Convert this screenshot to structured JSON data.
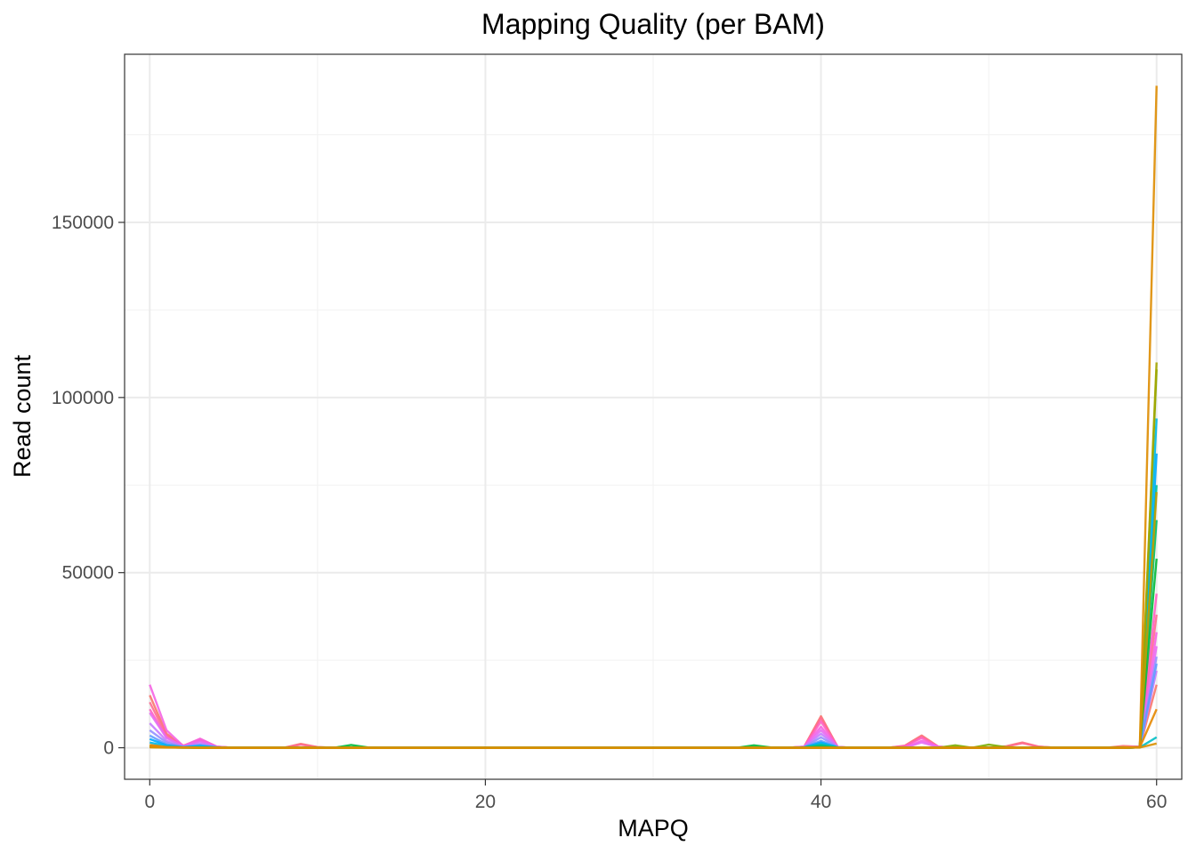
{
  "chart_data": {
    "type": "line",
    "title": "Mapping Quality (per BAM)",
    "xlabel": "MAPQ",
    "ylabel": "Read count",
    "xlim": [
      -1.5,
      61.5
    ],
    "ylim": [
      -9000,
      198000
    ],
    "x_ticks": [
      0,
      20,
      40,
      60
    ],
    "x_tick_labels": [
      "0",
      "20",
      "40",
      "60"
    ],
    "y_ticks": [
      0,
      50000,
      100000,
      150000
    ],
    "y_tick_labels": [
      "0",
      "50000",
      "100000",
      "150000"
    ],
    "grid": true,
    "legend": "none",
    "series": [
      {
        "color": "#F8766D",
        "points": [
          [
            0,
            15000
          ],
          [
            1,
            4000
          ],
          [
            2,
            600
          ],
          [
            3,
            2500
          ],
          [
            4,
            300
          ],
          [
            9,
            1100
          ],
          [
            10,
            200
          ],
          [
            39,
            300
          ],
          [
            40,
            9000
          ],
          [
            41,
            200
          ],
          [
            45,
            600
          ],
          [
            46,
            3500
          ],
          [
            47,
            300
          ],
          [
            51,
            400
          ],
          [
            52,
            1500
          ],
          [
            53,
            300
          ],
          [
            58,
            500
          ],
          [
            59,
            300
          ],
          [
            60,
            18000
          ]
        ]
      },
      {
        "color": "#FF6C91",
        "points": [
          [
            0,
            13000
          ],
          [
            1,
            3500
          ],
          [
            2,
            500
          ],
          [
            3,
            2200
          ],
          [
            4,
            300
          ],
          [
            9,
            900
          ],
          [
            10,
            200
          ],
          [
            39,
            300
          ],
          [
            40,
            8500
          ],
          [
            41,
            200
          ],
          [
            45,
            500
          ],
          [
            46,
            3200
          ],
          [
            47,
            300
          ],
          [
            51,
            300
          ],
          [
            52,
            1300
          ],
          [
            53,
            300
          ],
          [
            59,
            300
          ],
          [
            60,
            38000
          ]
        ]
      },
      {
        "color": "#FF61C3",
        "points": [
          [
            0,
            11000
          ],
          [
            1,
            3000
          ],
          [
            2,
            400
          ],
          [
            3,
            2000
          ],
          [
            4,
            250
          ],
          [
            39,
            250
          ],
          [
            40,
            7500
          ],
          [
            41,
            200
          ],
          [
            45,
            450
          ],
          [
            46,
            2800
          ],
          [
            47,
            250
          ],
          [
            59,
            300
          ],
          [
            60,
            44000
          ]
        ]
      },
      {
        "color": "#F564E3",
        "points": [
          [
            0,
            18000
          ],
          [
            1,
            5000
          ],
          [
            2,
            500
          ],
          [
            3,
            2600
          ],
          [
            4,
            300
          ],
          [
            39,
            300
          ],
          [
            40,
            6000
          ],
          [
            41,
            200
          ],
          [
            46,
            2000
          ],
          [
            47,
            300
          ],
          [
            59,
            300
          ],
          [
            60,
            33000
          ]
        ]
      },
      {
        "color": "#E76BF3",
        "points": [
          [
            0,
            10000
          ],
          [
            1,
            2800
          ],
          [
            2,
            400
          ],
          [
            3,
            1800
          ],
          [
            4,
            200
          ],
          [
            39,
            200
          ],
          [
            40,
            5000
          ],
          [
            41,
            200
          ],
          [
            46,
            1500
          ],
          [
            47,
            200
          ],
          [
            59,
            200
          ],
          [
            60,
            29000
          ]
        ]
      },
      {
        "color": "#C77CFF",
        "points": [
          [
            0,
            7000
          ],
          [
            1,
            2000
          ],
          [
            2,
            300
          ],
          [
            3,
            1200
          ],
          [
            4,
            200
          ],
          [
            39,
            200
          ],
          [
            40,
            4000
          ],
          [
            41,
            150
          ],
          [
            59,
            200
          ],
          [
            60,
            22000
          ]
        ]
      },
      {
        "color": "#9590FF",
        "points": [
          [
            0,
            5000
          ],
          [
            1,
            1500
          ],
          [
            2,
            250
          ],
          [
            3,
            900
          ],
          [
            4,
            150
          ],
          [
            39,
            150
          ],
          [
            40,
            3000
          ],
          [
            41,
            150
          ],
          [
            59,
            150
          ],
          [
            60,
            26000
          ]
        ]
      },
      {
        "color": "#619CFF",
        "points": [
          [
            0,
            3500
          ],
          [
            1,
            1000
          ],
          [
            2,
            200
          ],
          [
            3,
            700
          ],
          [
            4,
            100
          ],
          [
            39,
            150
          ],
          [
            40,
            2000
          ],
          [
            41,
            100
          ],
          [
            59,
            150
          ],
          [
            60,
            24000
          ]
        ]
      },
      {
        "color": "#00A9FF",
        "points": [
          [
            0,
            2500
          ],
          [
            1,
            700
          ],
          [
            2,
            150
          ],
          [
            3,
            500
          ],
          [
            4,
            100
          ],
          [
            39,
            100
          ],
          [
            40,
            1500
          ],
          [
            41,
            100
          ],
          [
            59,
            100
          ],
          [
            60,
            84000
          ]
        ]
      },
      {
        "color": "#00B8E7",
        "points": [
          [
            0,
            1500
          ],
          [
            1,
            500
          ],
          [
            2,
            100
          ],
          [
            3,
            300
          ],
          [
            4,
            100
          ],
          [
            39,
            100
          ],
          [
            40,
            1200
          ],
          [
            41,
            100
          ],
          [
            59,
            100
          ],
          [
            60,
            94000
          ]
        ]
      },
      {
        "color": "#00BFC4",
        "points": [
          [
            0,
            400
          ],
          [
            1,
            100
          ],
          [
            2,
            100
          ],
          [
            3,
            150
          ],
          [
            39,
            100
          ],
          [
            40,
            600
          ],
          [
            41,
            50
          ],
          [
            59,
            100
          ],
          [
            60,
            3000
          ]
        ]
      },
      {
        "color": "#00C19A",
        "points": [
          [
            0,
            300
          ],
          [
            1,
            100
          ],
          [
            2,
            50
          ],
          [
            39,
            100
          ],
          [
            40,
            800
          ],
          [
            41,
            50
          ],
          [
            59,
            100
          ],
          [
            60,
            75000
          ]
        ]
      },
      {
        "color": "#00BE67",
        "points": [
          [
            0,
            200
          ],
          [
            1,
            100
          ],
          [
            2,
            50
          ],
          [
            39,
            100
          ],
          [
            40,
            500
          ],
          [
            41,
            50
          ],
          [
            59,
            100
          ],
          [
            60,
            65000
          ]
        ]
      },
      {
        "color": "#00BA38",
        "points": [
          [
            0,
            500
          ],
          [
            1,
            200
          ],
          [
            2,
            100
          ],
          [
            12,
            800
          ],
          [
            13,
            100
          ],
          [
            36,
            700
          ],
          [
            37,
            100
          ],
          [
            59,
            100
          ],
          [
            60,
            54000
          ]
        ]
      },
      {
        "color": "#7CAE00",
        "points": [
          [
            0,
            300
          ],
          [
            1,
            100
          ],
          [
            2,
            100
          ],
          [
            48,
            700
          ],
          [
            50,
            900
          ],
          [
            51,
            200
          ],
          [
            59,
            100
          ],
          [
            60,
            108000
          ]
        ]
      },
      {
        "color": "#A3A500",
        "points": [
          [
            0,
            200
          ],
          [
            1,
            100
          ],
          [
            2,
            100
          ],
          [
            59,
            100
          ],
          [
            60,
            110000
          ]
        ]
      },
      {
        "color": "#C49A00",
        "points": [
          [
            0,
            200
          ],
          [
            1,
            100
          ],
          [
            2,
            50
          ],
          [
            59,
            100
          ],
          [
            60,
            73000
          ]
        ]
      },
      {
        "color": "#DE8C00",
        "points": [
          [
            0,
            800
          ],
          [
            1,
            200
          ],
          [
            2,
            100
          ],
          [
            59,
            200
          ],
          [
            60,
            189000
          ]
        ]
      },
      {
        "color": "#E58700",
        "points": [
          [
            0,
            600
          ],
          [
            1,
            200
          ],
          [
            2,
            100
          ],
          [
            59,
            150
          ],
          [
            60,
            11000
          ]
        ]
      },
      {
        "color": "#D89000",
        "points": [
          [
            0,
            100
          ],
          [
            1,
            50
          ],
          [
            59,
            50
          ],
          [
            60,
            1200
          ]
        ]
      }
    ]
  }
}
